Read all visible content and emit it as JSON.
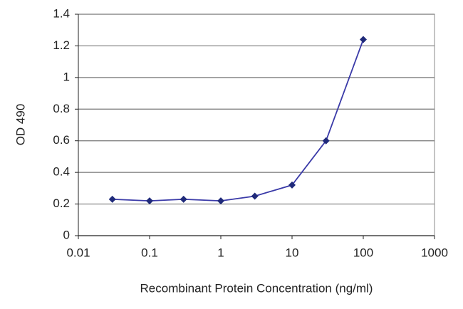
{
  "chart_data": {
    "type": "line",
    "x_label": "Recombinant Protein Concentration (ng/ml)",
    "y_label": "OD 490",
    "x": [
      0.03,
      0.1,
      0.3,
      1,
      3,
      10,
      30,
      100
    ],
    "values": [
      0.23,
      0.22,
      0.23,
      0.22,
      0.25,
      0.32,
      0.6,
      1.24
    ],
    "color": "#3a3aa8",
    "marker_color": "#1f2a7a",
    "xscale": "log",
    "xlim": [
      0.01,
      1000
    ],
    "xticks": [
      0.01,
      0.1,
      1,
      10,
      100,
      1000
    ],
    "ylim": [
      0,
      1.4
    ],
    "yticks": [
      0,
      0.2,
      0.4,
      0.6,
      0.8,
      1,
      1.2,
      1.4
    ],
    "grid": true
  }
}
